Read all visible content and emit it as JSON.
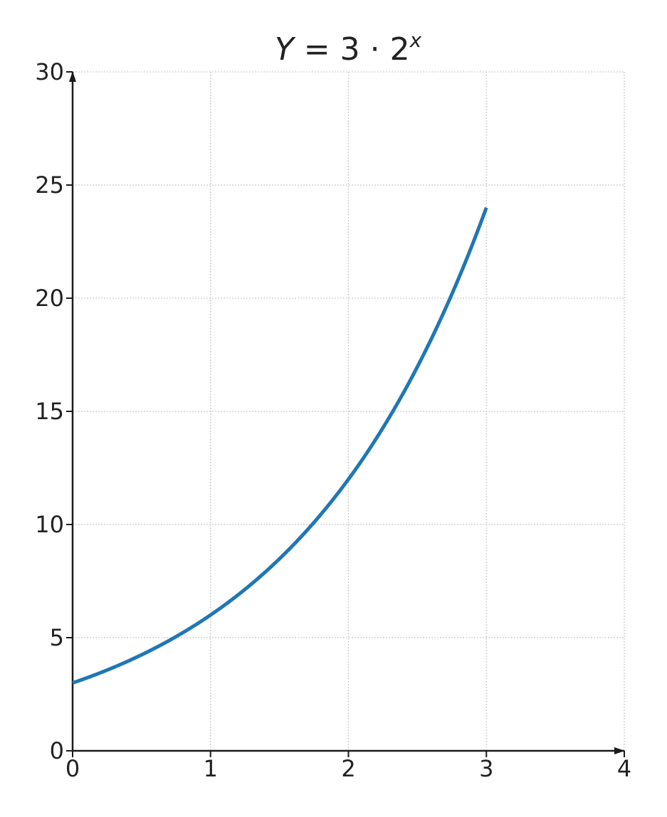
{
  "chart_data": {
    "type": "line",
    "title": {
      "variable": "Y",
      "equals": " = ",
      "coefficient": "3",
      "operator": " · ",
      "base": "2",
      "exponent": "x"
    },
    "xlabel": "",
    "ylabel": "",
    "xlim": [
      0,
      4
    ],
    "ylim": [
      0,
      30
    ],
    "x_ticks": [
      0,
      1,
      2,
      3,
      4
    ],
    "y_ticks": [
      0,
      5,
      10,
      15,
      20,
      25,
      30
    ],
    "grid": true,
    "series": [
      {
        "function": "3 * 2^x",
        "color": "#1f77b4",
        "x": [
          0,
          0.25,
          0.5,
          0.75,
          1,
          1.25,
          1.5,
          1.75,
          2,
          2.25,
          2.5,
          2.75,
          3
        ],
        "y": [
          3.0,
          3.57,
          4.24,
          5.05,
          6.0,
          7.14,
          8.49,
          10.09,
          12.0,
          14.27,
          16.97,
          20.18,
          24.0
        ]
      }
    ],
    "colors": {
      "axis": "#1a1a1a",
      "grid": "#cccccc",
      "text": "#222222"
    }
  }
}
